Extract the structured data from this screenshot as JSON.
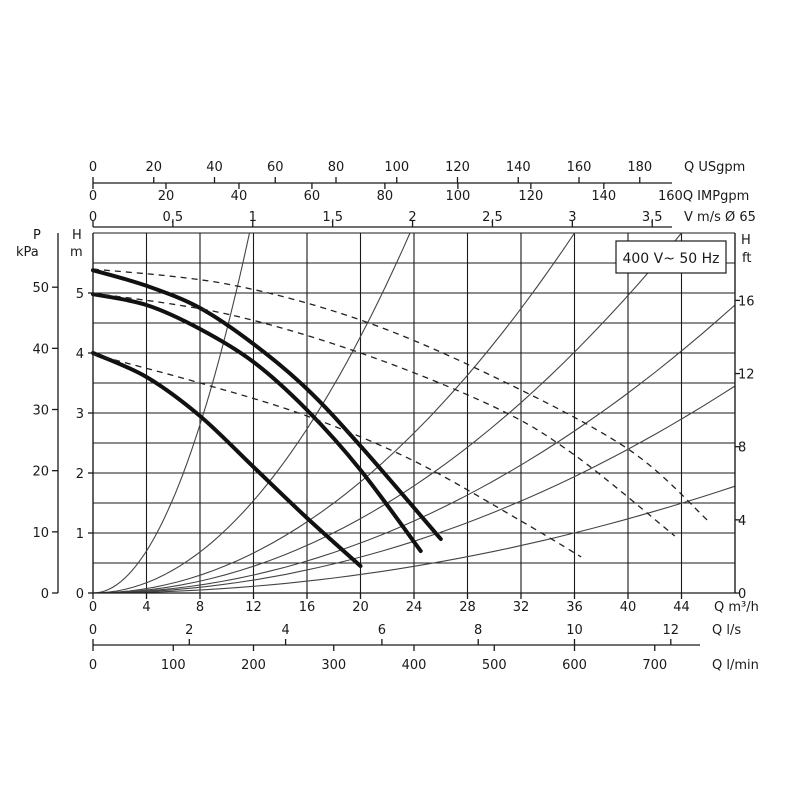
{
  "chart_data": {
    "type": "line",
    "title": "",
    "annotation": "400 V~ 50 Hz",
    "grid": true,
    "x": {
      "label": "Q m³/h",
      "range": [
        0,
        48
      ],
      "ticks": [
        0,
        4,
        8,
        12,
        16,
        20,
        24,
        28,
        32,
        36,
        40,
        44
      ]
    },
    "y_left_m": {
      "label": "H",
      "unit": "m",
      "range": [
        0,
        6
      ],
      "ticks": [
        0,
        1,
        2,
        3,
        4,
        5
      ]
    },
    "y_left_kpa": {
      "label": "P",
      "unit": "kPa",
      "ticks": [
        0,
        10,
        20,
        30,
        40,
        50
      ]
    },
    "y_right_ft": {
      "label": "H",
      "unit": "ft",
      "ticks": [
        0,
        4,
        8,
        12,
        16
      ]
    },
    "secondary_x_axes": [
      {
        "label": "Q USgpm",
        "ticks": [
          "0",
          "20",
          "40",
          "60",
          "80",
          "100",
          "120",
          "140",
          "160",
          "180"
        ]
      },
      {
        "label": "160Q IMPgpm",
        "ticks": [
          "0",
          "20",
          "40",
          "60",
          "80",
          "100",
          "120",
          "140"
        ]
      },
      {
        "label": "V m/s Ø 65",
        "ticks": [
          "0",
          "0,5",
          "1",
          "1,5",
          "2",
          "2,5",
          "3",
          "3,5"
        ]
      },
      {
        "label": "Q l/s",
        "ticks": [
          "0",
          "2",
          "4",
          "6",
          "8",
          "10",
          "12"
        ]
      },
      {
        "label": "Q l/min",
        "ticks": [
          "0",
          "100",
          "200",
          "300",
          "400",
          "500",
          "600",
          "700"
        ]
      }
    ],
    "series": [
      {
        "style": "solid",
        "x": [
          0,
          4,
          8,
          12,
          16,
          20
        ],
        "y": [
          4.0,
          3.6,
          2.95,
          2.1,
          1.25,
          0.45
        ]
      },
      {
        "style": "solid",
        "x": [
          0,
          4,
          8,
          12,
          16,
          20,
          24.5
        ],
        "y": [
          4.98,
          4.8,
          4.4,
          3.85,
          3.05,
          2.05,
          0.7
        ]
      },
      {
        "style": "solid",
        "x": [
          0,
          4,
          8,
          12,
          16,
          20,
          26
        ],
        "y": [
          5.38,
          5.12,
          4.75,
          4.15,
          3.4,
          2.45,
          0.9
        ]
      },
      {
        "style": "dashed",
        "x": [
          0,
          8,
          16,
          24,
          32,
          36.5
        ],
        "y": [
          3.98,
          3.5,
          2.95,
          2.2,
          1.2,
          0.6
        ]
      },
      {
        "style": "dashed",
        "x": [
          0,
          10,
          20,
          30,
          36,
          43.5
        ],
        "y": [
          5.0,
          4.65,
          4.0,
          3.1,
          2.3,
          0.95
        ]
      },
      {
        "style": "dashed",
        "x": [
          0,
          10,
          20,
          30,
          40,
          46
        ],
        "y": [
          5.4,
          5.15,
          4.55,
          3.6,
          2.4,
          1.2
        ]
      }
    ],
    "system_curves_end_x": [
      11.7,
      23.7,
      36.0,
      44.0,
      48.0,
      48.0,
      48.0
    ]
  }
}
